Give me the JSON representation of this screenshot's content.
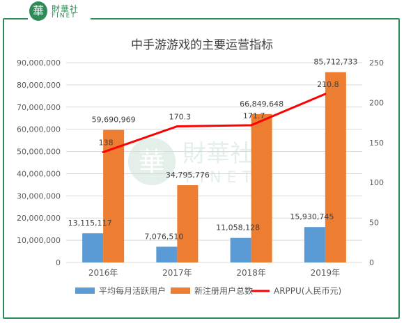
{
  "logo": {
    "cn": "財華社",
    "en": "FINET",
    "seal": "華"
  },
  "watermark": {
    "cn": "財華社",
    "en": "FINET"
  },
  "colors": {
    "frame": "#2e8b57",
    "series1": "#5b9bd5",
    "series2": "#ed7d31",
    "line": "#ff0000",
    "gridline": "#d9d9d9",
    "text": "#595959"
  },
  "chart_data": {
    "type": "bar",
    "title": "中手游游戏的主要运营指标",
    "categories": [
      "2016年",
      "2017年",
      "2018年",
      "2019年"
    ],
    "series": [
      {
        "name": "平均每月活跃用户",
        "type": "bar",
        "axis": "left",
        "values": [
          13115117,
          7076510,
          11058128,
          15930745
        ],
        "labels": [
          "13,115,117",
          "7,076,510",
          "11,058,128",
          "15,930,745"
        ]
      },
      {
        "name": "新注册用户总数",
        "type": "bar",
        "axis": "left",
        "values": [
          59690969,
          34795776,
          66849648,
          85712733
        ],
        "labels": [
          "59,690,969",
          "34,795,776",
          "66,849,648",
          "85,712,733"
        ]
      },
      {
        "name": "ARPPU(人民币元)",
        "type": "line",
        "axis": "right",
        "values": [
          138,
          170.3,
          171.7,
          210.8
        ],
        "labels": [
          "138",
          "170.3",
          "171.7",
          "210.8"
        ]
      }
    ],
    "y_left": {
      "min": 0,
      "max": 90000000,
      "ticks": [
        "0",
        "10,000,000",
        "20,000,000",
        "30,000,000",
        "40,000,000",
        "50,000,000",
        "60,000,000",
        "70,000,000",
        "80,000,000",
        "90,000,000"
      ]
    },
    "y_right": {
      "min": 0,
      "max": 250,
      "ticks": [
        "0",
        "50",
        "100",
        "150",
        "200",
        "250"
      ]
    },
    "grid": true,
    "legend_position": "bottom"
  }
}
